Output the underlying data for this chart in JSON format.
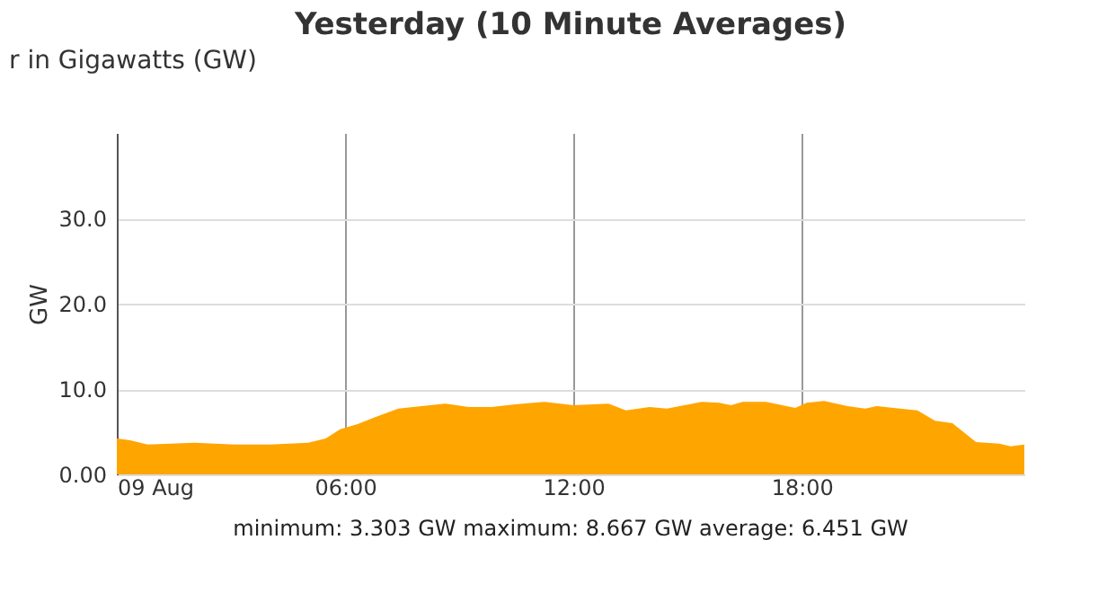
{
  "chart_data": {
    "type": "area",
    "title": "Yesterday (10 Minute Averages)",
    "ylabel": "GW",
    "annotations": [
      "r in Gigawatts (GW)",
      "minimum: 3.303 GW maximum: 8.667 GW average: 6.451 GW"
    ],
    "x": [
      0,
      0.35,
      0.81,
      2.04,
      3.11,
      4.03,
      5.03,
      5.49,
      5.87,
      6.33,
      6.79,
      7.4,
      8.01,
      8.63,
      9.24,
      9.85,
      10.47,
      11.24,
      12.0,
      12.92,
      13.38,
      14.0,
      14.46,
      15.37,
      15.83,
      16.14,
      16.45,
      17.06,
      17.83,
      18.13,
      18.59,
      19.2,
      19.67,
      19.97,
      21.04,
      21.5,
      21.96,
      22.58,
      23.19,
      23.49,
      23.85
    ],
    "series": [
      {
        "color": "#ffa500",
        "values": [
          4.2,
          4.0,
          3.5,
          3.7,
          3.5,
          3.5,
          3.7,
          4.2,
          5.3,
          5.9,
          6.7,
          7.7,
          8.0,
          8.3,
          7.9,
          7.9,
          8.2,
          8.5,
          8.1,
          8.3,
          7.5,
          7.9,
          7.7,
          8.5,
          8.4,
          8.1,
          8.5,
          8.5,
          7.8,
          8.4,
          8.6,
          8.0,
          7.7,
          8.0,
          7.5,
          6.3,
          6.0,
          3.8,
          3.6,
          3.3,
          3.5
        ]
      }
    ],
    "xlim": [
      0,
      23.85
    ],
    "xticks": [
      {
        "value": 0,
        "label": "09 Aug"
      },
      {
        "value": 6,
        "label": "06:00"
      },
      {
        "value": 12,
        "label": "12:00"
      },
      {
        "value": 18,
        "label": "18:00"
      }
    ],
    "ylim": [
      0,
      40
    ],
    "yticks": [
      {
        "value": 0,
        "label": "0.00"
      },
      {
        "value": 10,
        "label": "10.0"
      },
      {
        "value": 20,
        "label": "20.0"
      },
      {
        "value": 30,
        "label": "30.0"
      }
    ],
    "grid": true
  }
}
